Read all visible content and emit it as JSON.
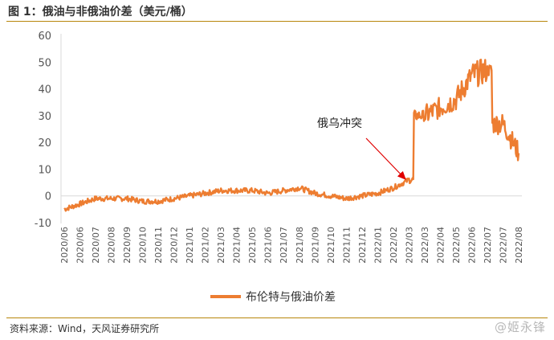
{
  "header": {
    "title": "图 1：俄油与非俄油价差（美元/桶）"
  },
  "footer": {
    "source": "资料来源：Wind，天风证券研究所",
    "watermark": "@姬永锋"
  },
  "chart_data": {
    "type": "line",
    "title": "图 1：俄油与非俄油价差（美元/桶）",
    "ylim": [
      -10,
      60
    ],
    "yticks": [
      60,
      50,
      40,
      30,
      20,
      10,
      0,
      -10
    ],
    "categories": [
      "2020/06",
      "2020/06",
      "2020/07",
      "2020/08",
      "2020/09",
      "2020/10",
      "2020/11",
      "2020/12",
      "2021/01",
      "2021/02",
      "2021/03",
      "2021/04",
      "2021/05",
      "2021/06",
      "2021/07",
      "2021/08",
      "2021/09",
      "2021/10",
      "2021/11",
      "2021/12",
      "2022/01",
      "2022/02",
      "2022/03",
      "2022/03",
      "2022/04",
      "2022/05",
      "2022/06",
      "2022/07",
      "2022/07",
      "2022/08"
    ],
    "series": [
      {
        "name": "布伦特与俄油价差",
        "color": "#ed7d31",
        "values": [
          -5,
          -3,
          -1,
          -1,
          -1,
          -2,
          -2,
          -1,
          0,
          1,
          2,
          2,
          2,
          1,
          2,
          3,
          1,
          0,
          -1,
          0,
          1,
          3,
          6,
          30,
          33,
          36,
          45,
          47,
          27,
          16
        ]
      }
    ],
    "annotation": {
      "text": "俄乌冲突",
      "points_to": "2022/02"
    },
    "grid": false,
    "legend": "bottom-center"
  }
}
